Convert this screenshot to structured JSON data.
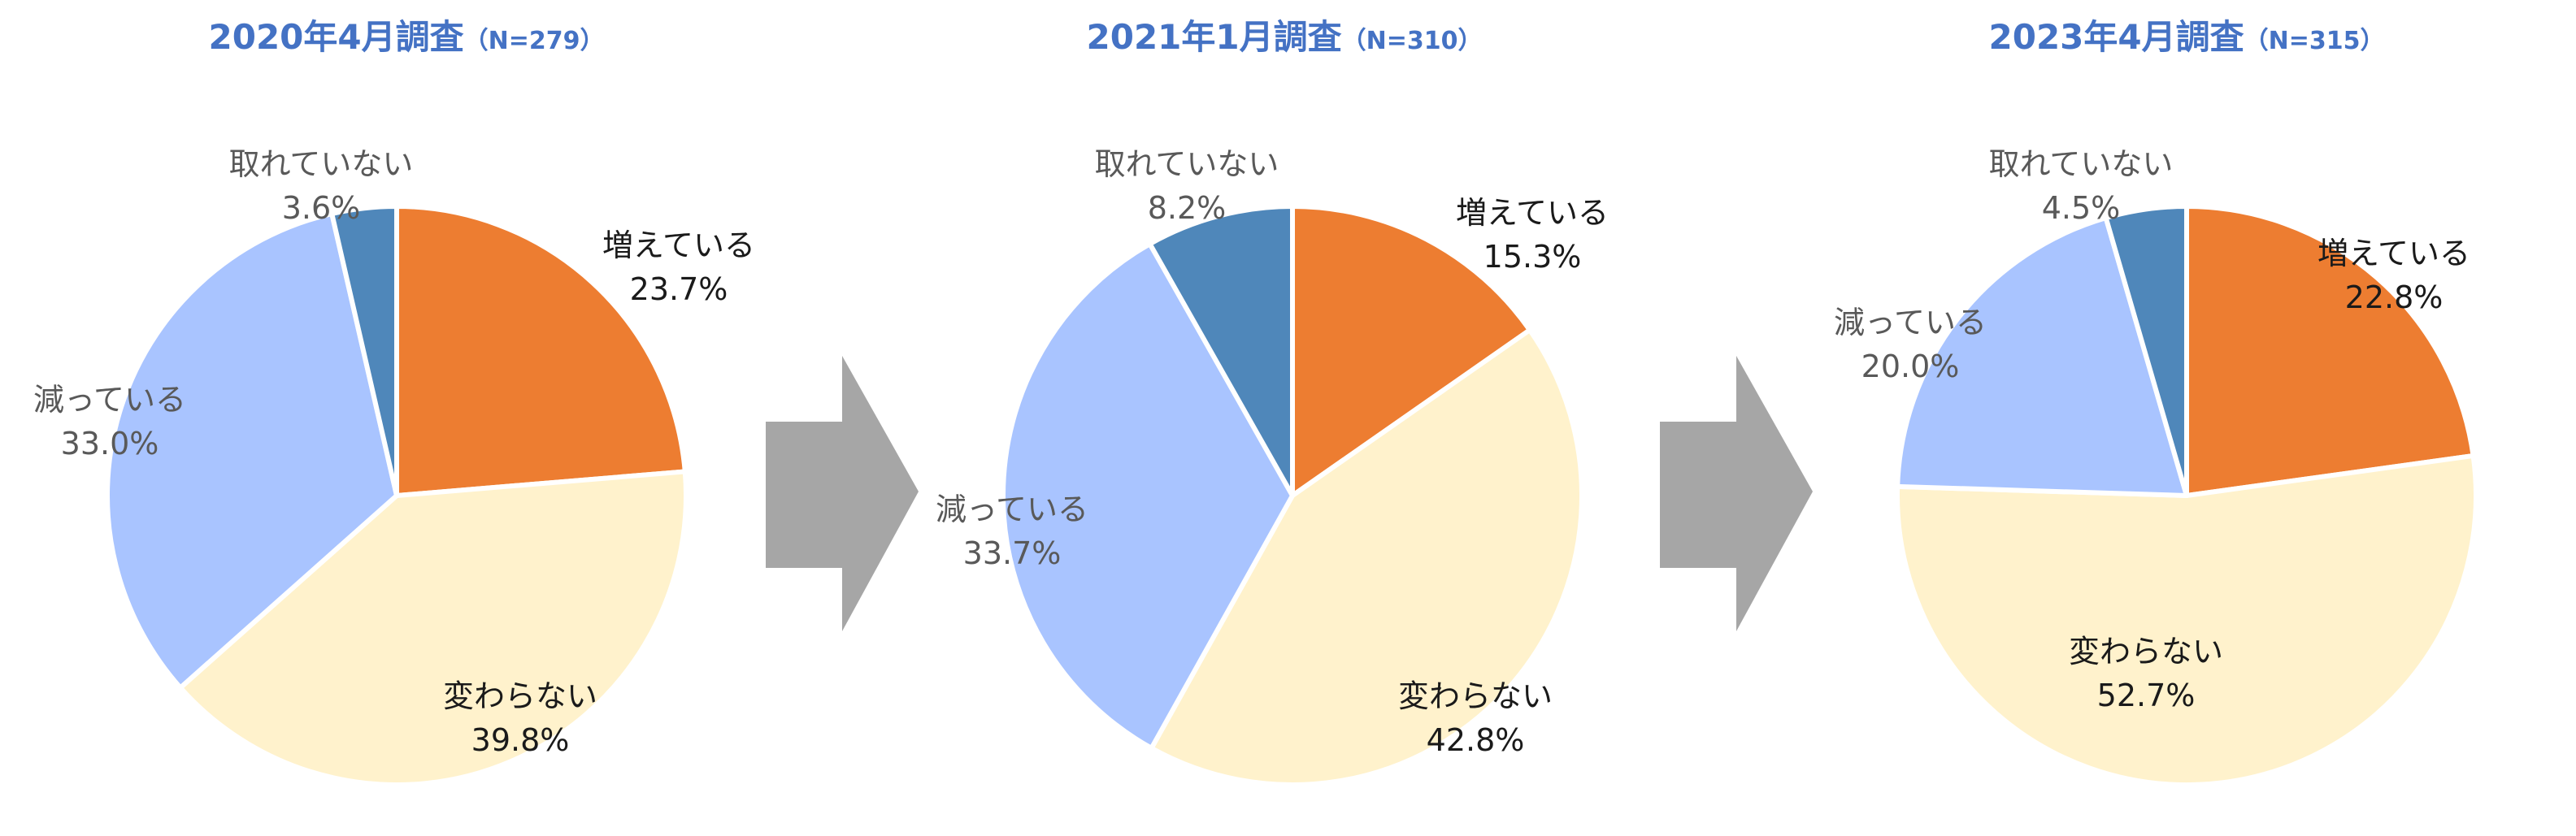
{
  "chart_data": [
    {
      "type": "pie",
      "title": "2020年4月調査",
      "subtitle": "（N=279）",
      "start_angle_deg": 0,
      "direction": "clockwise",
      "slices": [
        {
          "label": "増えている",
          "value": 23.7,
          "display": "23.7%",
          "color": "#ED7D31",
          "text_color": "#1a1a1a"
        },
        {
          "label": "変わらない",
          "value": 39.8,
          "display": "39.8%",
          "color": "#FFF2CC",
          "text_color": "#1a1a1a"
        },
        {
          "label": "減っている",
          "value": 33.0,
          "display": "33.0%",
          "color": "#A9C4FF",
          "text_color": "#595959"
        },
        {
          "label": "取れていない",
          "value": 3.6,
          "display": "3.6%",
          "color": "#4F87BA",
          "text_color": "#595959"
        }
      ]
    },
    {
      "type": "pie",
      "title": "2021年1月調査",
      "subtitle": "（N=310）",
      "start_angle_deg": 0,
      "direction": "clockwise",
      "slices": [
        {
          "label": "増えている",
          "value": 15.3,
          "display": "15.3%",
          "color": "#ED7D31",
          "text_color": "#1a1a1a"
        },
        {
          "label": "変わらない",
          "value": 42.8,
          "display": "42.8%",
          "color": "#FFF2CC",
          "text_color": "#1a1a1a"
        },
        {
          "label": "減っている",
          "value": 33.7,
          "display": "33.7%",
          "color": "#A9C4FF",
          "text_color": "#595959"
        },
        {
          "label": "取れていない",
          "value": 8.2,
          "display": "8.2%",
          "color": "#4F87BA",
          "text_color": "#595959"
        }
      ]
    },
    {
      "type": "pie",
      "title": "2023年4月調査",
      "subtitle": "（N=315）",
      "start_angle_deg": 0,
      "direction": "clockwise",
      "slices": [
        {
          "label": "増えている",
          "value": 22.8,
          "display": "22.8%",
          "color": "#ED7D31",
          "text_color": "#1a1a1a"
        },
        {
          "label": "変わらない",
          "value": 52.7,
          "display": "52.7%",
          "color": "#FFF2CC",
          "text_color": "#1a1a1a"
        },
        {
          "label": "減っている",
          "value": 20.0,
          "display": "20.0%",
          "color": "#A9C4FF",
          "text_color": "#595959"
        },
        {
          "label": "取れていない",
          "value": 4.5,
          "display": "4.5%",
          "color": "#4F87BA",
          "text_color": "#595959"
        }
      ]
    }
  ],
  "colors": {
    "title": "#4472C4",
    "arrow": "#A6A6A6",
    "slice_border": "#ffffff"
  }
}
